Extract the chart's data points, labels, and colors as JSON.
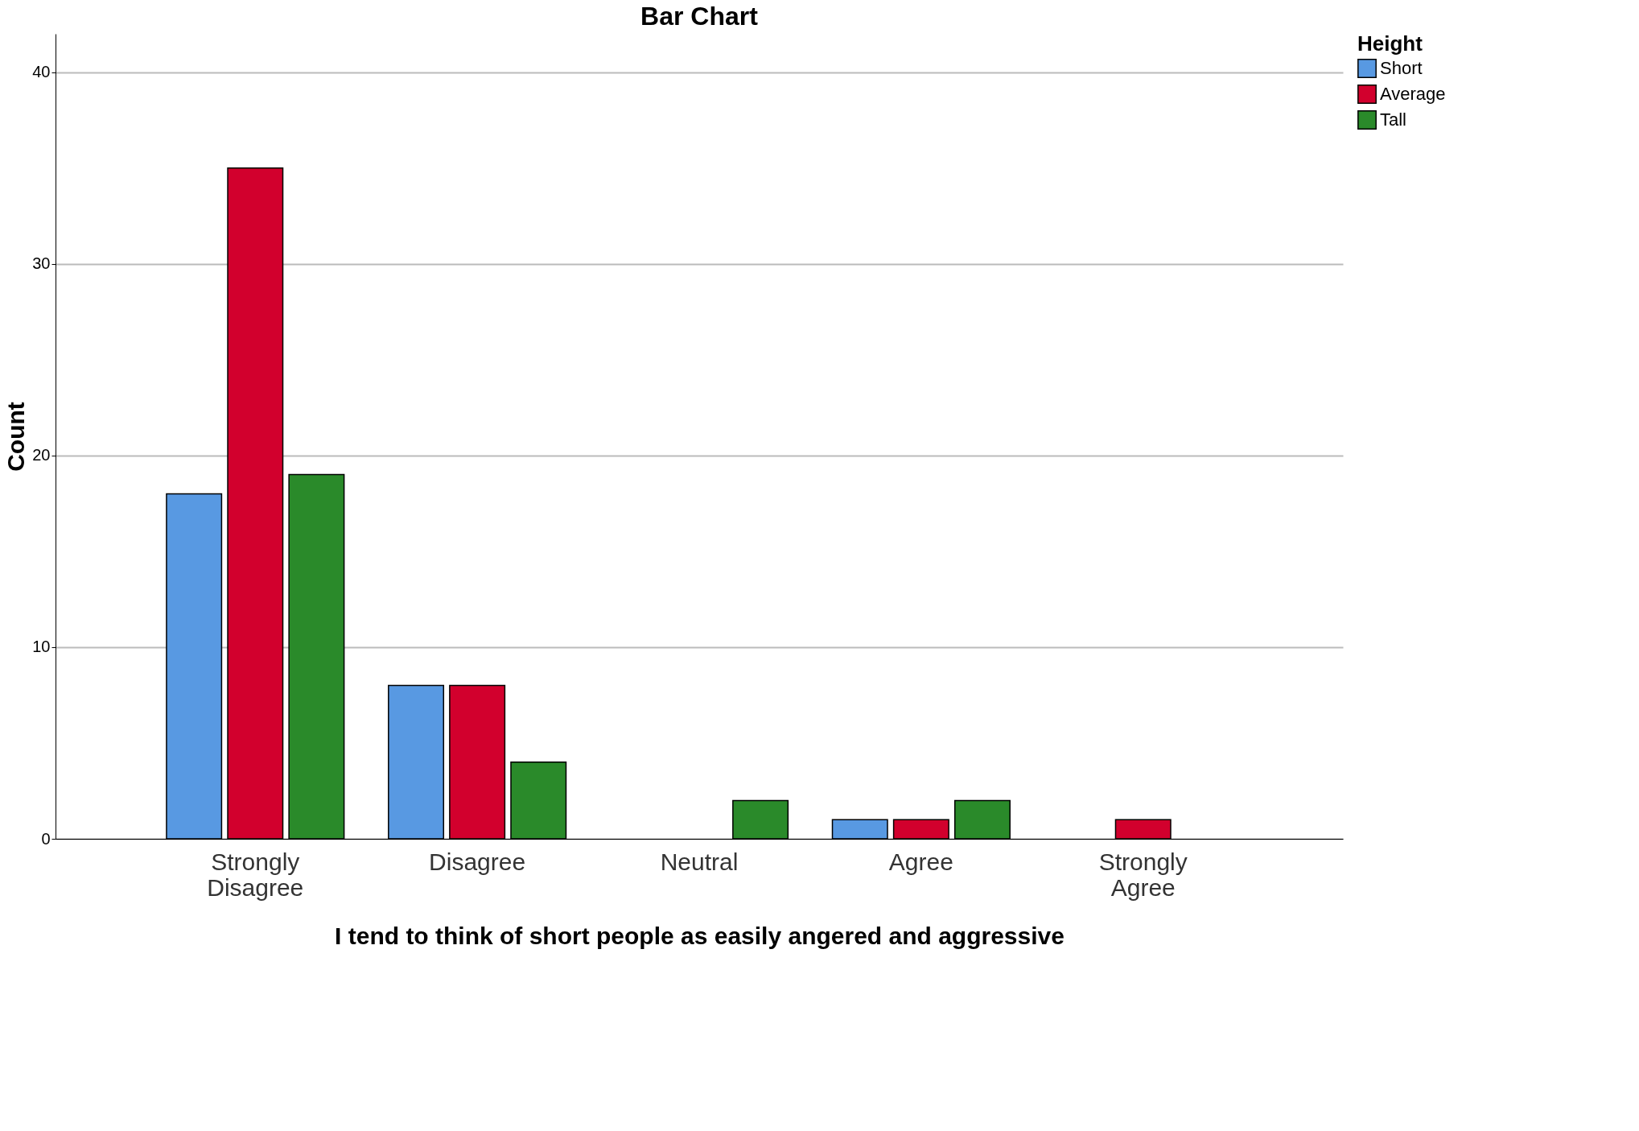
{
  "chart_data": {
    "type": "bar",
    "title": "Bar Chart",
    "xlabel": "I tend to think of short people as easily angered and aggressive",
    "ylabel": "Count",
    "legend_title": "Height",
    "categories": [
      "Strongly Disagree",
      "Disagree",
      "Neutral",
      "Agree",
      "Strongly Agree"
    ],
    "series": [
      {
        "name": "Short",
        "color": "#5899e2",
        "values": [
          18,
          8,
          null,
          1,
          null
        ]
      },
      {
        "name": "Average",
        "color": "#d2002d",
        "values": [
          35,
          8,
          null,
          1,
          1
        ]
      },
      {
        "name": "Tall",
        "color": "#2a8a2a",
        "values": [
          19,
          4,
          2,
          2,
          null
        ]
      }
    ],
    "ylim": [
      0,
      42
    ],
    "yticks": [
      0,
      10,
      20,
      30,
      40
    ],
    "grid": "y",
    "legend": "top right"
  }
}
